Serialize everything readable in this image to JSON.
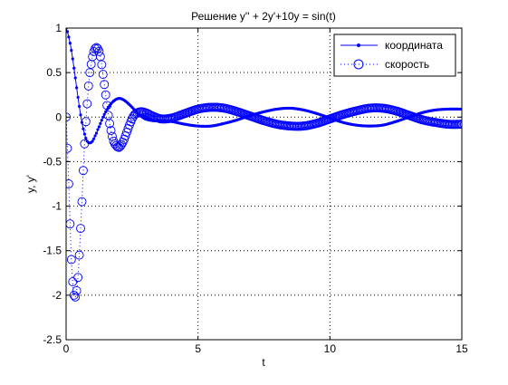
{
  "chart_data": {
    "type": "line",
    "title": "Решение y'' + 2y'+10y = sin(t)",
    "xlabel": "t",
    "ylabel": "y, y'",
    "xlim": [
      0,
      15
    ],
    "ylim": [
      -2.5,
      1
    ],
    "x_ticks": [
      0,
      5,
      10,
      15
    ],
    "y_ticks": [
      -2.5,
      -2,
      -1.5,
      -1,
      -0.5,
      0,
      0.5,
      1
    ],
    "x_tick_labels": [
      "0",
      "5",
      "10",
      "15"
    ],
    "y_tick_labels": [
      "-2.5",
      "-2",
      "-1.5",
      "-1",
      "-0.5",
      "0",
      "0.5",
      "1"
    ],
    "grid": true,
    "legend_position": "top-right",
    "series": [
      {
        "name": "координата",
        "color": "#0000ff",
        "style": "solid",
        "marker": "dot",
        "x": [
          0,
          0.1,
          0.2,
          0.3,
          0.4,
          0.5,
          0.6,
          0.7,
          0.8,
          0.9,
          1.0,
          1.1,
          1.2,
          1.4,
          1.6,
          1.8,
          2.0,
          2.2,
          2.4,
          2.6,
          2.8,
          3.0,
          3.3,
          3.6,
          4.0,
          4.5,
          5.0,
          5.5,
          6.0,
          6.5,
          7.0,
          7.5,
          8.0,
          8.5,
          9.0,
          9.5,
          10.0,
          10.5,
          11.0,
          11.5,
          12.0,
          12.5,
          13.0,
          13.5,
          14.0,
          14.5,
          15.0
        ],
        "values": [
          1.0,
          0.9,
          0.75,
          0.55,
          0.33,
          0.12,
          -0.06,
          -0.19,
          -0.27,
          -0.29,
          -0.27,
          -0.21,
          -0.14,
          0.0,
          0.11,
          0.18,
          0.21,
          0.19,
          0.14,
          0.08,
          0.02,
          -0.02,
          -0.04,
          -0.04,
          -0.05,
          -0.08,
          -0.1,
          -0.1,
          -0.07,
          -0.03,
          0.02,
          0.06,
          0.09,
          0.1,
          0.08,
          0.04,
          -0.01,
          -0.06,
          -0.09,
          -0.1,
          -0.09,
          -0.05,
          0.0,
          0.05,
          0.08,
          0.09,
          0.09
        ]
      },
      {
        "name": "скорость",
        "color": "#0000ff",
        "style": "dotted",
        "marker": "circle",
        "x": [
          0,
          0.05,
          0.1,
          0.15,
          0.2,
          0.25,
          0.3,
          0.35,
          0.4,
          0.45,
          0.5,
          0.55,
          0.6,
          0.65,
          0.7,
          0.75,
          0.8,
          0.85,
          0.9,
          1.0,
          1.1,
          1.2,
          1.3,
          1.4,
          1.5,
          1.6,
          1.7,
          1.8,
          1.9,
          2.0,
          2.1,
          2.2,
          2.3,
          2.4,
          2.5,
          2.6,
          2.8,
          3.0,
          3.3,
          3.6,
          4.0,
          4.5,
          5.0,
          5.5,
          6.0,
          6.5,
          7.0,
          7.5,
          8.0,
          8.5,
          9.0,
          9.5,
          10.0,
          10.5,
          11.0,
          11.5,
          12.0,
          12.5,
          13.0,
          13.5,
          14.0,
          14.5,
          15.0
        ],
        "values": [
          0.0,
          -0.35,
          -0.75,
          -1.2,
          -1.6,
          -1.85,
          -2.0,
          -2.02,
          -1.95,
          -1.8,
          -1.55,
          -1.25,
          -0.95,
          -0.6,
          -0.3,
          -0.05,
          0.15,
          0.35,
          0.5,
          0.68,
          0.77,
          0.77,
          0.68,
          0.48,
          0.25,
          0.02,
          -0.15,
          -0.27,
          -0.32,
          -0.34,
          -0.31,
          -0.25,
          -0.17,
          -0.09,
          -0.02,
          0.03,
          0.06,
          0.05,
          0.01,
          -0.02,
          -0.01,
          0.04,
          0.09,
          0.11,
          0.1,
          0.06,
          0.01,
          -0.04,
          -0.08,
          -0.1,
          -0.1,
          -0.07,
          -0.02,
          0.03,
          0.07,
          0.1,
          0.1,
          0.07,
          0.02,
          -0.03,
          -0.06,
          -0.08,
          -0.08
        ]
      }
    ]
  }
}
